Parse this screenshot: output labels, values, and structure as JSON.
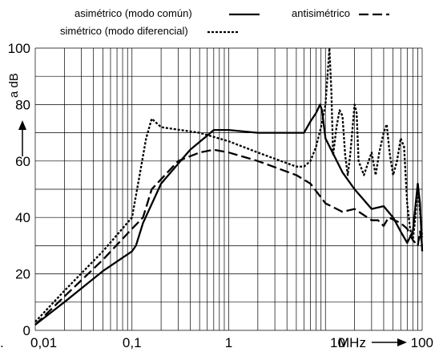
{
  "chart_data": {
    "type": "line",
    "xscale": "log",
    "xlim": [
      0.01,
      100
    ],
    "ylim": [
      0,
      100
    ],
    "ylabel": "a dB",
    "xunit": "MHz",
    "grid": true,
    "legend_position": "top",
    "xticks": [
      {
        "value": 0.01,
        "label": "0,01"
      },
      {
        "value": 0.1,
        "label": "0,1"
      },
      {
        "value": 1,
        "label": "1"
      },
      {
        "value": 10,
        "label": "10"
      },
      {
        "value": 100,
        "label": "100"
      }
    ],
    "yticks": [
      {
        "value": 0,
        "label": "0"
      },
      {
        "value": 20,
        "label": "20"
      },
      {
        "value": 40,
        "label": "40"
      },
      {
        "value": 60,
        "label": "60"
      },
      {
        "value": 80,
        "label": "80"
      },
      {
        "value": 100,
        "label": "100"
      }
    ],
    "series": [
      {
        "name": "asimétrico (modo común)",
        "dash": "solid",
        "points": [
          [
            0.01,
            2
          ],
          [
            0.02,
            10
          ],
          [
            0.05,
            21
          ],
          [
            0.1,
            28
          ],
          [
            0.11,
            30
          ],
          [
            0.13,
            38
          ],
          [
            0.2,
            52
          ],
          [
            0.4,
            64
          ],
          [
            0.6,
            69
          ],
          [
            0.7,
            71
          ],
          [
            1,
            71
          ],
          [
            2,
            70
          ],
          [
            5,
            70
          ],
          [
            6,
            70
          ],
          [
            7,
            74
          ],
          [
            8,
            77
          ],
          [
            8.8,
            80
          ],
          [
            9.2,
            78
          ],
          [
            10,
            68
          ],
          [
            15,
            56
          ],
          [
            20,
            50
          ],
          [
            30,
            43
          ],
          [
            40,
            44
          ],
          [
            50,
            40
          ],
          [
            60,
            35
          ],
          [
            70,
            31
          ],
          [
            80,
            35
          ],
          [
            90,
            52
          ],
          [
            95,
            45
          ],
          [
            100,
            28
          ]
        ]
      },
      {
        "name": "simétrico (modo diferencial)",
        "dash": "dotted",
        "points": [
          [
            0.01,
            3
          ],
          [
            0.02,
            14
          ],
          [
            0.05,
            28
          ],
          [
            0.1,
            40
          ],
          [
            0.12,
            55
          ],
          [
            0.14,
            68
          ],
          [
            0.16,
            75
          ],
          [
            0.2,
            72
          ],
          [
            0.5,
            70
          ],
          [
            1,
            67
          ],
          [
            2,
            63
          ],
          [
            5,
            58
          ],
          [
            6,
            58
          ],
          [
            7,
            60
          ],
          [
            8,
            65
          ],
          [
            9,
            72
          ],
          [
            10,
            80
          ],
          [
            10.5,
            90
          ],
          [
            11,
            100
          ],
          [
            11.5,
            85
          ],
          [
            12,
            62
          ],
          [
            13,
            72
          ],
          [
            14,
            78
          ],
          [
            15,
            76
          ],
          [
            16,
            62
          ],
          [
            17,
            55
          ],
          [
            18,
            62
          ],
          [
            20,
            80
          ],
          [
            21,
            77
          ],
          [
            22,
            60
          ],
          [
            25,
            55
          ],
          [
            28,
            60
          ],
          [
            30,
            63
          ],
          [
            33,
            55
          ],
          [
            36,
            63
          ],
          [
            40,
            70
          ],
          [
            43,
            73
          ],
          [
            46,
            63
          ],
          [
            50,
            55
          ],
          [
            55,
            60
          ],
          [
            60,
            68
          ],
          [
            65,
            65
          ],
          [
            70,
            45
          ],
          [
            75,
            36
          ],
          [
            80,
            32
          ],
          [
            85,
            40
          ],
          [
            90,
            52
          ],
          [
            95,
            42
          ],
          [
            100,
            33
          ]
        ]
      },
      {
        "name": "antisimétrico",
        "dash": "dashed",
        "points": [
          [
            0.01,
            2
          ],
          [
            0.02,
            12
          ],
          [
            0.05,
            25
          ],
          [
            0.1,
            36
          ],
          [
            0.13,
            40
          ],
          [
            0.16,
            50
          ],
          [
            0.3,
            60
          ],
          [
            0.5,
            63
          ],
          [
            0.7,
            64
          ],
          [
            1,
            63
          ],
          [
            2,
            60
          ],
          [
            5,
            55
          ],
          [
            7,
            52
          ],
          [
            10,
            45
          ],
          [
            15,
            42
          ],
          [
            20,
            43
          ],
          [
            30,
            39
          ],
          [
            35,
            39
          ],
          [
            40,
            37
          ],
          [
            45,
            40
          ],
          [
            60,
            38
          ],
          [
            70,
            36
          ],
          [
            80,
            32
          ],
          [
            90,
            30
          ],
          [
            95,
            35
          ],
          [
            100,
            30
          ]
        ]
      }
    ]
  },
  "legend": {
    "asym_label": "asimétrico (modo común)",
    "sym_label": "simétrico (modo diferencial)",
    "anti_label": "antisimétrico"
  },
  "axes": {
    "ylabel": "a dB",
    "xunit": "MHz"
  }
}
